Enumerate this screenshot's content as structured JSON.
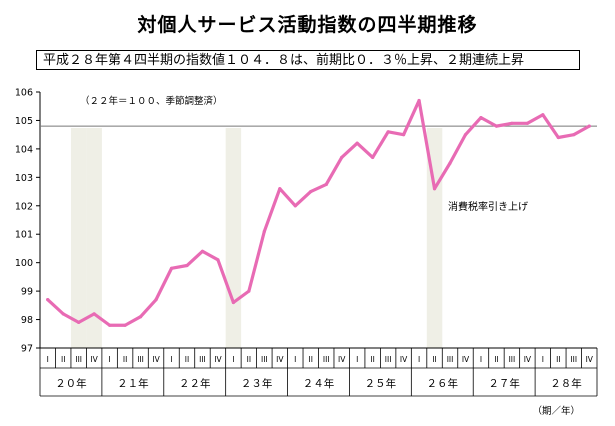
{
  "title": "対個人サービス活動指数の四半期推移",
  "subtitle": "平成２８年第４四半期の指数値１０４．８は、前期比０．３％上昇、２期連続上昇",
  "chart_data": {
    "type": "line",
    "note": "（２２年＝１００、季節調整済）",
    "annotation": "消費税率引き上げ",
    "axis_unit": "（期／年）",
    "ylim": [
      97,
      106
    ],
    "yticks": [
      "97",
      "98",
      "99",
      "100",
      "101",
      "102",
      "103",
      "104",
      "105",
      "106"
    ],
    "reference_line": 104.8,
    "quarter_labels": [
      "I",
      "II",
      "III",
      "IV"
    ],
    "years": [
      "２０年",
      "２１年",
      "２２年",
      "２３年",
      "２４年",
      "２５年",
      "２６年",
      "２７年",
      "２８年"
    ],
    "shaded_quarters": [
      3,
      4,
      13,
      26
    ],
    "series": [
      {
        "color": "#e86bb4",
        "values": [
          98.7,
          98.2,
          97.9,
          98.2,
          97.8,
          97.8,
          98.1,
          98.7,
          99.8,
          99.9,
          100.4,
          100.1,
          98.6,
          99.0,
          101.1,
          102.6,
          102.0,
          102.5,
          102.75,
          103.7,
          104.2,
          103.7,
          104.6,
          104.5,
          105.7,
          102.6,
          103.5,
          104.5,
          105.1,
          104.8,
          104.9,
          104.9,
          105.2,
          104.4,
          104.5,
          104.8
        ]
      }
    ]
  }
}
